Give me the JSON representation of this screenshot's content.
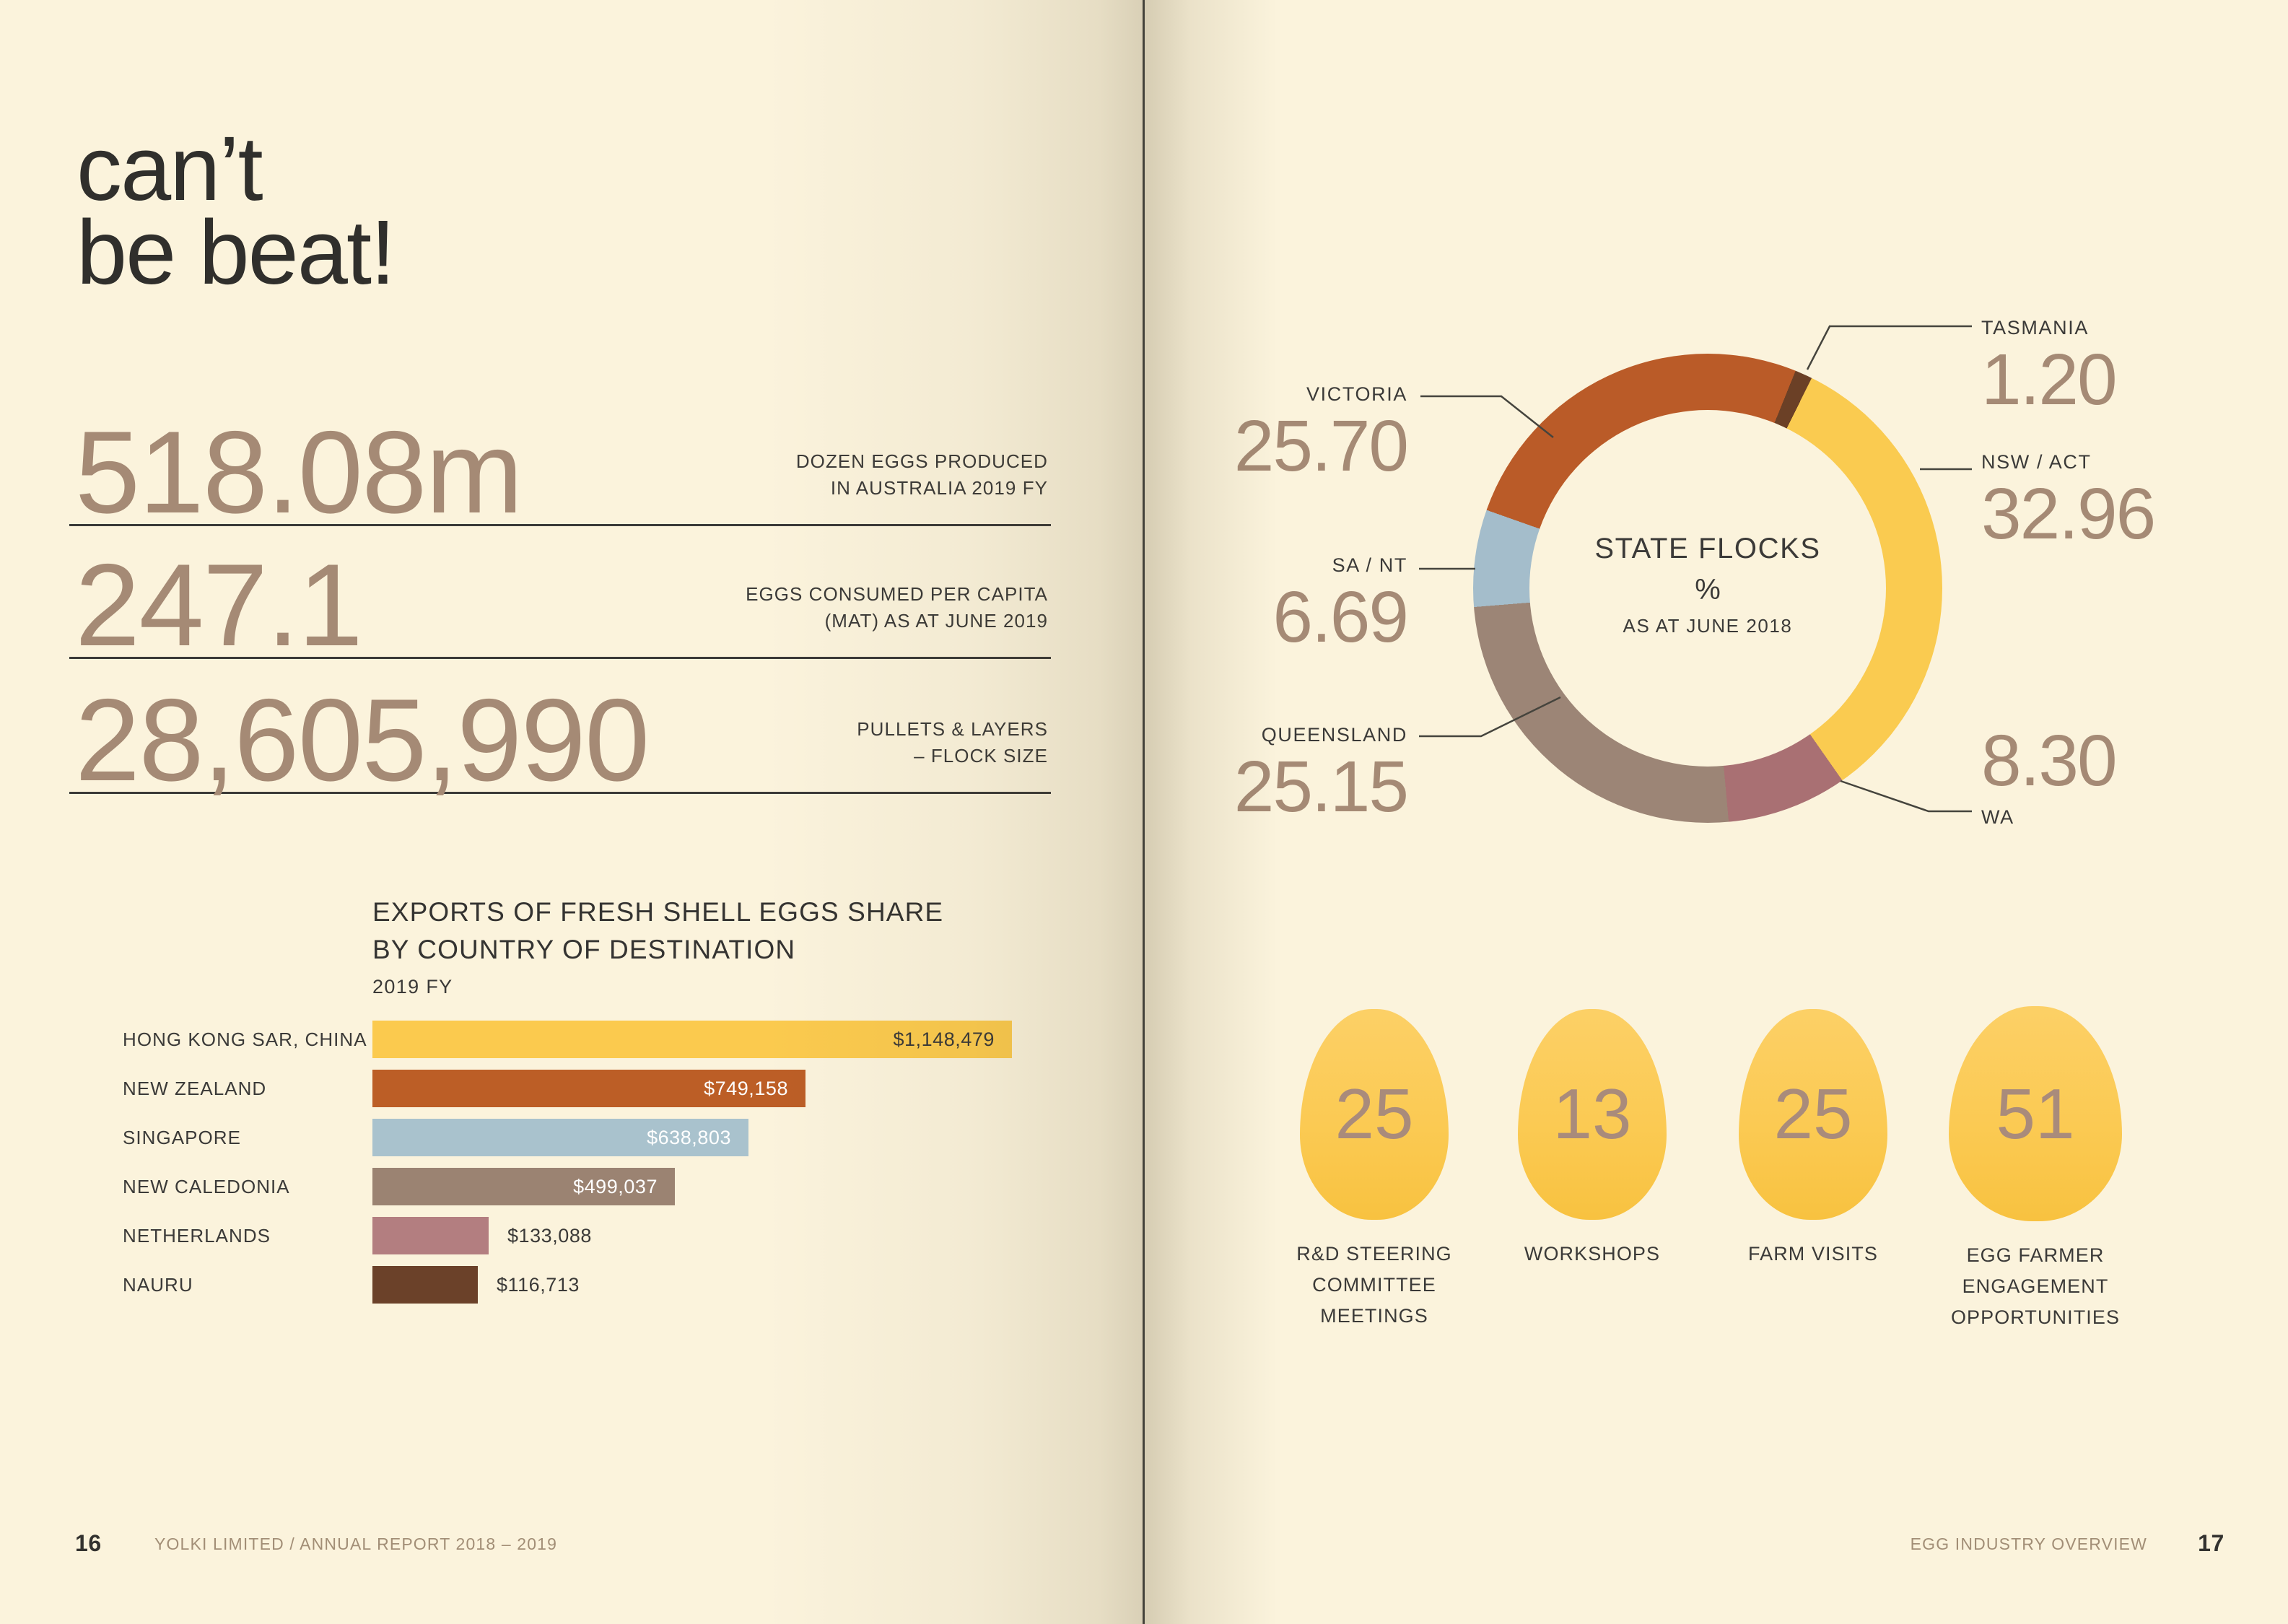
{
  "page_bg": "#FBF3DC",
  "ink_color": "#3B3A38",
  "accent_taupe": "#A58A75",
  "left_page": {
    "headline": "can’t\nbe beat!",
    "stats": [
      {
        "value": "518.08m",
        "label": "DOZEN EGGS PRODUCED\nIN AUSTRALIA 2019 FY"
      },
      {
        "value": "247.1",
        "label": "EGGS CONSUMED PER CAPITA\n(MAT) AS AT JUNE 2019"
      },
      {
        "value": "28,605,990",
        "label": "PULLETS & LAYERS\n– FLOCK SIZE"
      }
    ],
    "footer": {
      "page_number": "16",
      "text": "YOLKI LIMITED / ANNUAL REPORT 2018 – 2019"
    }
  },
  "right_page": {
    "footer": {
      "text": "EGG INDUSTRY OVERVIEW",
      "page_number": "17"
    }
  },
  "chart_data": [
    {
      "type": "bar",
      "orientation": "horizontal",
      "title": "EXPORTS OF FRESH SHELL EGGS SHARE\nBY COUNTRY OF DESTINATION",
      "subtitle": "2019 FY",
      "categories": [
        "HONG KONG SAR, CHINA",
        "NEW ZEALAND",
        "SINGAPORE",
        "NEW CALEDONIA",
        "NETHERLANDS",
        "NAURU"
      ],
      "values": [
        1148479,
        749158,
        638803,
        499037,
        133088,
        116713
      ],
      "value_labels": [
        "$1,148,479",
        "$749,158",
        "$638,803",
        "$499,037",
        "$133,088",
        "$116,713"
      ],
      "colors": [
        "#FBCA4E",
        "#BC5E26",
        "#A9C2CD",
        "#9B8372",
        "#B37E80",
        "#6B4129"
      ],
      "bar_width_pct": [
        100,
        67.7,
        58.8,
        47.3,
        18.2,
        16.5
      ],
      "value_label_inside": [
        true,
        true,
        true,
        true,
        false,
        false
      ],
      "value_label_color": [
        "#3B3A38",
        "#FFFFFF",
        "#FFFFFF",
        "#FFFFFF",
        "#3B3A38",
        "#3B3A38"
      ],
      "grid": false,
      "legend": false
    },
    {
      "type": "donut",
      "title": "STATE FLOCKS",
      "unit": "%",
      "subtitle": "AS AT JUNE 2018",
      "start_angle_deg": 22,
      "slices": [
        {
          "label": "TASMANIA",
          "value": 1.2,
          "display": "1.20",
          "color": "#6B4026"
        },
        {
          "label": "NSW / ACT",
          "value": 32.96,
          "display": "32.96",
          "color": "#FACB50"
        },
        {
          "label": "WA",
          "value": 8.3,
          "display": "8.30",
          "color": "#A97073"
        },
        {
          "label": "QUEENSLAND",
          "value": 25.15,
          "display": "25.15",
          "color": "#9C8576"
        },
        {
          "label": "SA / NT",
          "value": 6.69,
          "display": "6.69",
          "color": "#A4BDCB"
        },
        {
          "label": "VICTORIA",
          "value": 25.7,
          "display": "25.70",
          "color": "#BA5B28"
        }
      ]
    },
    {
      "type": "pictogram",
      "icon": "egg",
      "egg_color": "#FBCA53",
      "number_color": "#A98B7B",
      "items": [
        {
          "value": "25",
          "label": "R&D STEERING\nCOMMITTEE\nMEETINGS"
        },
        {
          "value": "13",
          "label": "WORKSHOPS"
        },
        {
          "value": "25",
          "label": "FARM VISITS"
        },
        {
          "value": "51",
          "label": "EGG FARMER\nENGAGEMENT\nOPPORTUNITIES"
        }
      ]
    }
  ]
}
